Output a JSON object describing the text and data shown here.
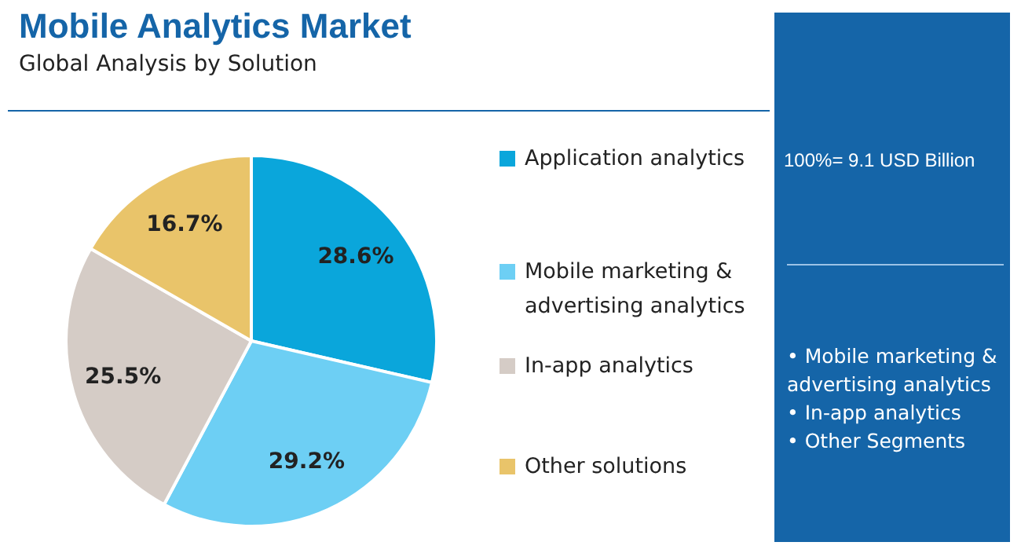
{
  "chart_data": {
    "type": "pie",
    "title": "Mobile Analytics Market",
    "subtitle": "Global Analysis by Solution",
    "categories": [
      "Application analytics",
      "Mobile marketing & advertising analytics",
      "In-app analytics",
      "Other solutions"
    ],
    "values": [
      28.6,
      29.2,
      25.5,
      16.7
    ],
    "colors": [
      "#0aa6db",
      "#6dcff4",
      "#d5ccc6",
      "#e9c46a"
    ],
    "value_labels": [
      "28.6%",
      "29.2%",
      "25.5%",
      "16.7%"
    ],
    "legend": "right",
    "annotations": [
      "100%= 9.1 USD Billion",
      "• Mobile marketing & advertising analytics",
      "• In-app analytics",
      "• Other Segments"
    ]
  }
}
